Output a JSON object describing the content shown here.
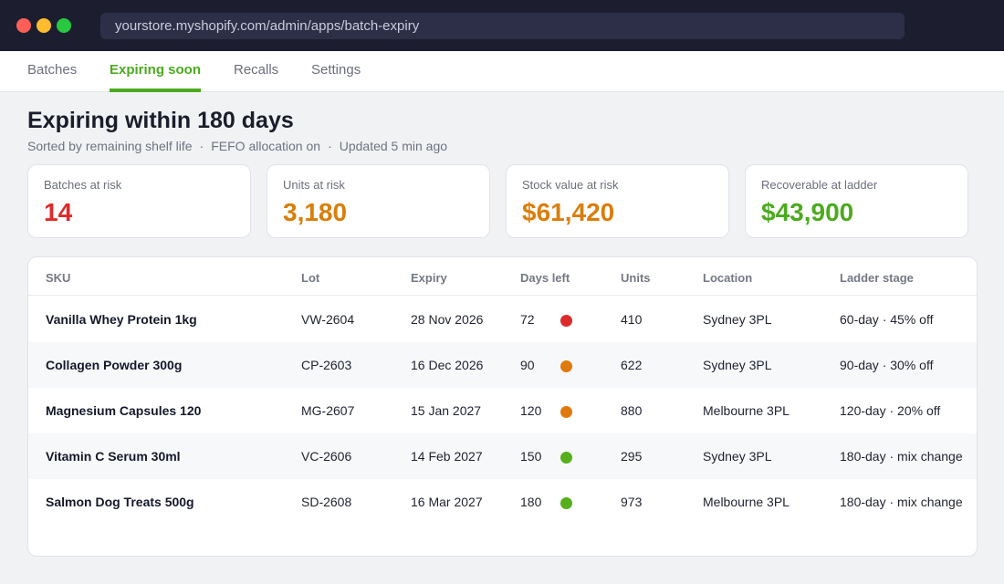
{
  "browser": {
    "url": "yourstore.myshopify.com/admin/apps/batch-expiry"
  },
  "tabs": [
    {
      "label": "Batches",
      "active": false
    },
    {
      "label": "Expiring soon",
      "active": true
    },
    {
      "label": "Recalls",
      "active": false
    },
    {
      "label": "Settings",
      "active": false
    }
  ],
  "page": {
    "title": "Expiring within 180 days",
    "subtitle_parts": [
      "Sorted by remaining shelf life",
      "FEFO allocation on",
      "Updated 5 min ago"
    ],
    "separator": "·"
  },
  "cards": [
    {
      "label": "Batches at risk",
      "value": "14",
      "color": "#dc2b2b"
    },
    {
      "label": "Units at risk",
      "value": "3,180",
      "color": "#d97e0a"
    },
    {
      "label": "Stock value at risk",
      "value": "$61,420",
      "color": "#d97e0a"
    },
    {
      "label": "Recoverable at ladder",
      "value": "$43,900",
      "color": "#4caa1f"
    }
  ],
  "table": {
    "columns": [
      "SKU",
      "Lot",
      "Expiry",
      "Days left",
      "Units",
      "Location",
      "Ladder stage"
    ],
    "rows": [
      {
        "sku": "Vanilla Whey Protein 1kg",
        "lot": "VW-2604",
        "expiry": "28 Nov 2026",
        "days": "72",
        "status": "critical",
        "status_color": "#dc2b2b",
        "units": "410",
        "location": "Sydney 3PL",
        "stage": "60-day · 45% off"
      },
      {
        "sku": "Collagen Powder 300g",
        "lot": "CP-2603",
        "expiry": "16 Dec 2026",
        "days": "90",
        "status": "warning",
        "status_color": "#e0790d",
        "units": "622",
        "location": "Sydney 3PL",
        "stage": "90-day · 30% off"
      },
      {
        "sku": "Magnesium Capsules 120",
        "lot": "MG-2607",
        "expiry": "15 Jan 2027",
        "days": "120",
        "status": "warning",
        "status_color": "#e0790d",
        "units": "880",
        "location": "Melbourne 3PL",
        "stage": "120-day · 20% off"
      },
      {
        "sku": "Vitamin C Serum 30ml",
        "lot": "VC-2606",
        "expiry": "14 Feb 2027",
        "days": "150",
        "status": "ok",
        "status_color": "#55b01c",
        "units": "295",
        "location": "Sydney 3PL",
        "stage": "180-day · mix change"
      },
      {
        "sku": "Salmon Dog Treats 500g",
        "lot": "SD-2608",
        "expiry": "16 Mar 2027",
        "days": "180",
        "status": "ok",
        "status_color": "#55b01c",
        "units": "973",
        "location": "Melbourne 3PL",
        "stage": "180-day · mix change"
      }
    ]
  }
}
